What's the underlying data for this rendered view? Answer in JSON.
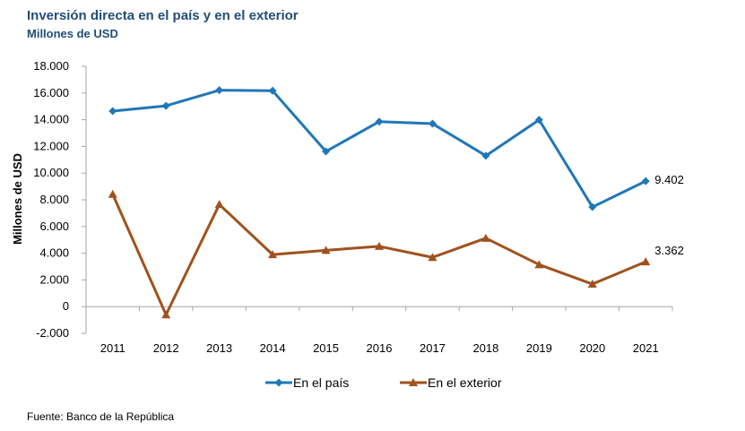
{
  "header": {
    "title": "Inversión directa en el país y en el exterior",
    "subtitle": "Millones de USD"
  },
  "footer": {
    "source": "Fuente: Banco de la República"
  },
  "colors": {
    "series1": "#1f77b8",
    "series2": "#a0521d",
    "axis": "#a6a6a6"
  },
  "chart_data": {
    "type": "line",
    "title": "Inversión directa en el país y en el exterior",
    "subtitle": "Millones de USD",
    "xlabel": "",
    "ylabel": "Millones de USD",
    "categories": [
      "2011",
      "2012",
      "2013",
      "2014",
      "2015",
      "2016",
      "2017",
      "2018",
      "2019",
      "2020",
      "2021"
    ],
    "ylim": [
      -2000,
      18000
    ],
    "yticks": [
      -2000,
      0,
      2000,
      4000,
      6000,
      8000,
      10000,
      12000,
      14000,
      16000,
      18000
    ],
    "ytick_labels": [
      "-2.000",
      "0",
      "2.000",
      "4.000",
      "6.000",
      "8.000",
      "10.000",
      "12.000",
      "14.000",
      "16.000",
      "18.000"
    ],
    "grid": false,
    "legend_position": "bottom",
    "series": [
      {
        "name": "En el país",
        "marker": "diamond",
        "values": [
          14648,
          15040,
          16210,
          16167,
          11621,
          13858,
          13701,
          11299,
          13989,
          7459,
          9402
        ],
        "end_label": "9.402"
      },
      {
        "name": "En el exterior",
        "marker": "triangle",
        "values": [
          8420,
          -606,
          7652,
          3899,
          4218,
          4516,
          3690,
          5126,
          3145,
          1688,
          3362
        ],
        "end_label": "3.362"
      }
    ]
  }
}
